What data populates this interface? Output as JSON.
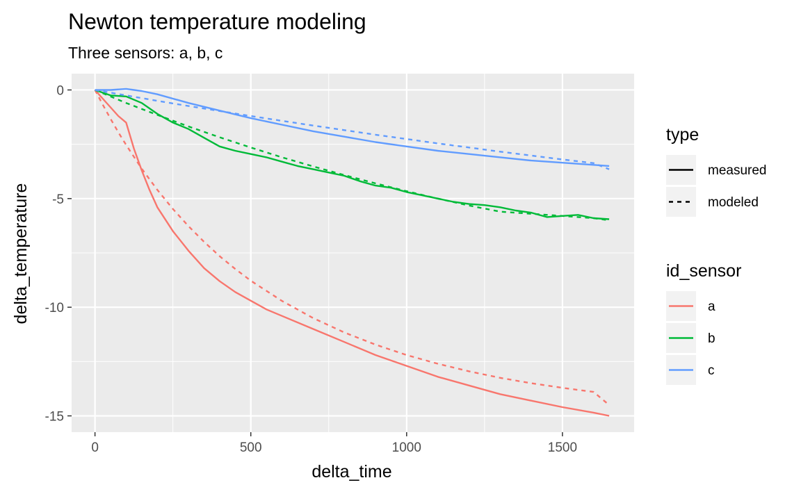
{
  "chart_data": {
    "type": "line",
    "title": "Newton temperature modeling",
    "subtitle": "Three sensors: a, b, c",
    "xlabel": "delta_time",
    "ylabel": "delta_temperature",
    "xlim": [
      -75,
      1730
    ],
    "ylim": [
      -15.75,
      0.75
    ],
    "x_ticks": [
      0,
      500,
      1000,
      1500
    ],
    "y_ticks": [
      0,
      -5,
      -10,
      -15
    ],
    "x_tick_labels": [
      "0",
      "500",
      "1000",
      "1500"
    ],
    "y_tick_labels": [
      "0",
      "-5",
      "-10",
      "-15"
    ],
    "grid": true,
    "legend_placement": "right",
    "legends": [
      {
        "title": "type",
        "entries": [
          {
            "label": "measured",
            "dash": "solid"
          },
          {
            "label": "modeled",
            "dash": "dashed"
          }
        ]
      },
      {
        "title": "id_sensor",
        "entries": [
          {
            "label": "a",
            "color": "#F8766D"
          },
          {
            "label": "b",
            "color": "#00BA38"
          },
          {
            "label": "c",
            "color": "#619CFF"
          }
        ]
      }
    ],
    "series": [
      {
        "name": "a",
        "type": "measured",
        "color": "#F8766D",
        "x": [
          0,
          25,
          50,
          75,
          100,
          125,
          150,
          175,
          200,
          250,
          300,
          350,
          400,
          450,
          500,
          550,
          600,
          700,
          800,
          900,
          1000,
          1100,
          1200,
          1300,
          1400,
          1500,
          1600,
          1650
        ],
        "y": [
          0,
          -0.4,
          -0.8,
          -1.2,
          -1.5,
          -2.7,
          -3.7,
          -4.6,
          -5.4,
          -6.5,
          -7.4,
          -8.2,
          -8.8,
          -9.3,
          -9.7,
          -10.1,
          -10.4,
          -11.0,
          -11.6,
          -12.2,
          -12.7,
          -13.2,
          -13.6,
          -14.0,
          -14.3,
          -14.6,
          -14.85,
          -15.0
        ]
      },
      {
        "name": "a",
        "type": "modeled",
        "color": "#F8766D",
        "x": [
          0,
          25,
          50,
          75,
          100,
          150,
          200,
          250,
          300,
          350,
          400,
          450,
          500,
          600,
          700,
          800,
          900,
          1000,
          1100,
          1200,
          1300,
          1400,
          1500,
          1600,
          1650
        ],
        "y": [
          0,
          -0.68,
          -1.33,
          -1.95,
          -2.53,
          -3.62,
          -4.6,
          -5.48,
          -6.27,
          -6.99,
          -7.65,
          -8.24,
          -8.78,
          -9.71,
          -10.5,
          -11.16,
          -11.72,
          -12.2,
          -12.6,
          -12.95,
          -13.25,
          -13.5,
          -13.71,
          -13.9,
          -14.5
        ]
      },
      {
        "name": "b",
        "type": "measured",
        "color": "#00BA38",
        "x": [
          0,
          50,
          100,
          150,
          200,
          250,
          300,
          350,
          400,
          450,
          500,
          550,
          600,
          650,
          700,
          750,
          800,
          850,
          900,
          950,
          1000,
          1050,
          1100,
          1150,
          1200,
          1250,
          1300,
          1350,
          1400,
          1450,
          1500,
          1550,
          1600,
          1650
        ],
        "y": [
          0,
          -0.25,
          -0.3,
          -0.6,
          -1.1,
          -1.5,
          -1.8,
          -2.2,
          -2.6,
          -2.8,
          -2.95,
          -3.1,
          -3.3,
          -3.5,
          -3.65,
          -3.8,
          -3.95,
          -4.2,
          -4.4,
          -4.5,
          -4.7,
          -4.85,
          -5.0,
          -5.15,
          -5.25,
          -5.3,
          -5.4,
          -5.55,
          -5.65,
          -5.85,
          -5.8,
          -5.75,
          -5.9,
          -5.95
        ]
      },
      {
        "name": "b",
        "type": "modeled",
        "color": "#00BA38",
        "x": [
          0,
          100,
          200,
          300,
          400,
          500,
          600,
          700,
          800,
          900,
          1000,
          1100,
          1200,
          1300,
          1400,
          1500,
          1600,
          1650
        ],
        "y": [
          0,
          -0.6,
          -1.15,
          -1.68,
          -2.18,
          -2.65,
          -3.1,
          -3.52,
          -3.92,
          -4.3,
          -4.66,
          -5.0,
          -5.32,
          -5.6,
          -5.7,
          -5.8,
          -5.9,
          -6.0
        ]
      },
      {
        "name": "c",
        "type": "measured",
        "color": "#619CFF",
        "x": [
          0,
          50,
          100,
          150,
          200,
          300,
          400,
          500,
          600,
          700,
          800,
          900,
          1000,
          1100,
          1200,
          1300,
          1400,
          1500,
          1600,
          1650
        ],
        "y": [
          0,
          0.0,
          0.05,
          -0.05,
          -0.2,
          -0.6,
          -0.95,
          -1.3,
          -1.6,
          -1.9,
          -2.15,
          -2.4,
          -2.6,
          -2.8,
          -2.95,
          -3.1,
          -3.25,
          -3.35,
          -3.45,
          -3.5
        ]
      },
      {
        "name": "c",
        "type": "modeled",
        "color": "#619CFF",
        "x": [
          0,
          100,
          200,
          300,
          400,
          500,
          600,
          700,
          800,
          900,
          1000,
          1100,
          1200,
          1300,
          1400,
          1500,
          1600,
          1650
        ],
        "y": [
          0,
          -0.25,
          -0.5,
          -0.74,
          -0.97,
          -1.2,
          -1.42,
          -1.64,
          -1.85,
          -2.06,
          -2.26,
          -2.46,
          -2.65,
          -2.84,
          -3.02,
          -3.2,
          -3.37,
          -3.65
        ]
      }
    ]
  }
}
